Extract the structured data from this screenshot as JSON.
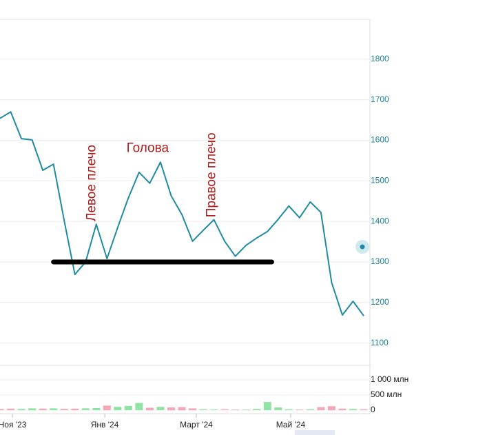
{
  "chart_data": [
    {
      "type": "line",
      "x": [
        0,
        1,
        2,
        3,
        4,
        5,
        6,
        7,
        8,
        9,
        10,
        11,
        12,
        13,
        14,
        15,
        16,
        17,
        18,
        19,
        20,
        21,
        22,
        23,
        24,
        25,
        26,
        27,
        28,
        29,
        30,
        31,
        32,
        33,
        34
      ],
      "series": [
        {
          "color": "#1f8ba3",
          "values": [
            1654,
            1670,
            1604,
            1601,
            1526,
            1541,
            1402,
            1269,
            1300,
            1393,
            1308,
            1385,
            1458,
            1521,
            1494,
            1546,
            1463,
            1417,
            1351,
            1378,
            1404,
            1351,
            1314,
            1341,
            1359,
            1375,
            1405,
            1438,
            1409,
            1448,
            1422,
            1249,
            1169,
            1203,
            1167
          ]
        }
      ],
      "xlim": [
        0,
        34.45
      ],
      "ylim": [
        1050,
        1900
      ],
      "yticks": [
        1100,
        1200,
        1300,
        1400,
        1500,
        1600,
        1700,
        1800
      ],
      "grid": true,
      "annotations": [
        {
          "text": "Левое плечо",
          "x": 8.6,
          "value": 1400
        },
        {
          "text": "Голова",
          "x": 13.8,
          "value": 1580
        },
        {
          "text": "Правое плечо",
          "x": 19.8,
          "value": 1410
        }
      ],
      "neckline": {
        "value": 1300,
        "from": 5,
        "to": 25.4,
        "color": "#000000"
      }
    },
    {
      "type": "bar",
      "x": [
        0,
        1,
        2,
        3,
        4,
        5,
        6,
        7,
        8,
        9,
        10,
        11,
        12,
        13,
        14,
        15,
        16,
        17,
        18,
        19,
        20,
        21,
        22,
        23,
        24,
        25,
        26,
        27,
        28,
        29,
        30,
        31,
        32,
        33,
        34
      ],
      "values": [
        40,
        50,
        40,
        60,
        50,
        60,
        40,
        50,
        60,
        70,
        150,
        110,
        140,
        240,
        80,
        110,
        90,
        100,
        60,
        30,
        20,
        30,
        20,
        20,
        40,
        270,
        90,
        30,
        20,
        30,
        100,
        130,
        50,
        40,
        30
      ],
      "colors": [
        "#f4a6b5",
        "#f4a6b5",
        "#8fe3a3",
        "#8fe3a3",
        "#f4a6b5",
        "#8fe3a3",
        "#f4a6b5",
        "#f4a6b5",
        "#8fe3a3",
        "#8fe3a3",
        "#f4a6b5",
        "#8fe3a3",
        "#8fe3a3",
        "#8fe3a3",
        "#f4a6b5",
        "#8fe3a3",
        "#f4a6b5",
        "#f4a6b5",
        "#f4a6b5",
        "#8fe3a3",
        "#8fe3a3",
        "#f4a6b5",
        "#f4a6b5",
        "#8fe3a3",
        "#8fe3a3",
        "#8fe3a3",
        "#8fe3a3",
        "#8fe3a3",
        "#f4a6b5",
        "#8fe3a3",
        "#f4a6b5",
        "#f4a6b5",
        "#f4a6b5",
        "#8fe3a3",
        "#f4a6b5"
      ],
      "xlim": [
        0,
        34.45
      ],
      "ylim": [
        0,
        1500
      ],
      "yticks": [
        {
          "value": 0,
          "label": "0"
        },
        {
          "value": 500,
          "label": "500 млн"
        },
        {
          "value": 1000,
          "label": "1 000 млн"
        }
      ],
      "xticks": [
        {
          "value": 1.16,
          "label": "Ноя '23"
        },
        {
          "value": 9.79,
          "label": "Янв '24"
        },
        {
          "value": 18.35,
          "label": "Март '24"
        },
        {
          "value": 27.17,
          "label": "Май '24"
        }
      ]
    }
  ]
}
